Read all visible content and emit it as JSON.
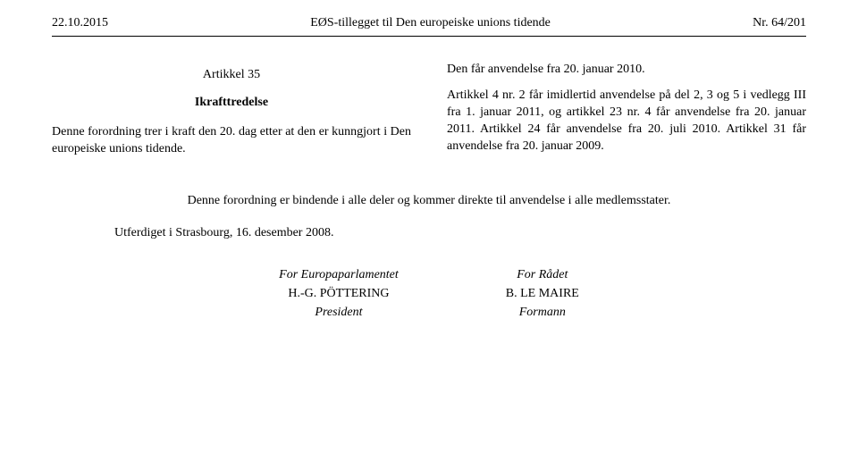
{
  "header": {
    "date": "22.10.2015",
    "title": "EØS-tillegget til Den europeiske unions tidende",
    "pageref": "Nr. 64/201"
  },
  "left": {
    "article_title": "Artikkel 35",
    "article_sub": "Ikrafttredelse",
    "para": "Denne forordning trer i kraft den 20. dag etter at den er kunngjort i Den europeiske unions tidende."
  },
  "right": {
    "p1": "Den får anvendelse fra 20. januar 2010.",
    "p2": "Artikkel 4 nr. 2 får imidlertid anvendelse på del 2, 3 og 5 i vedlegg III fra 1. januar 2011, og artikkel 23 nr. 4 får anvendelse fra 20. januar 2011. Artikkel 24 får anvendelse fra 20. juli 2010. Artikkel 31 får anvendelse fra 20. januar 2009."
  },
  "binding": "Denne forordning er bindende i alle deler og kommer direkte til anvendelse i alle medlemsstater.",
  "place": "Utferdiget i Strasbourg, 16. desember 2008.",
  "sign": {
    "left": {
      "for": "For Europaparlamentet",
      "name": "H.-G. PÖTTERING",
      "role": "President"
    },
    "right": {
      "for": "For Rådet",
      "name": "B. LE MAIRE",
      "role": "Formann"
    }
  }
}
